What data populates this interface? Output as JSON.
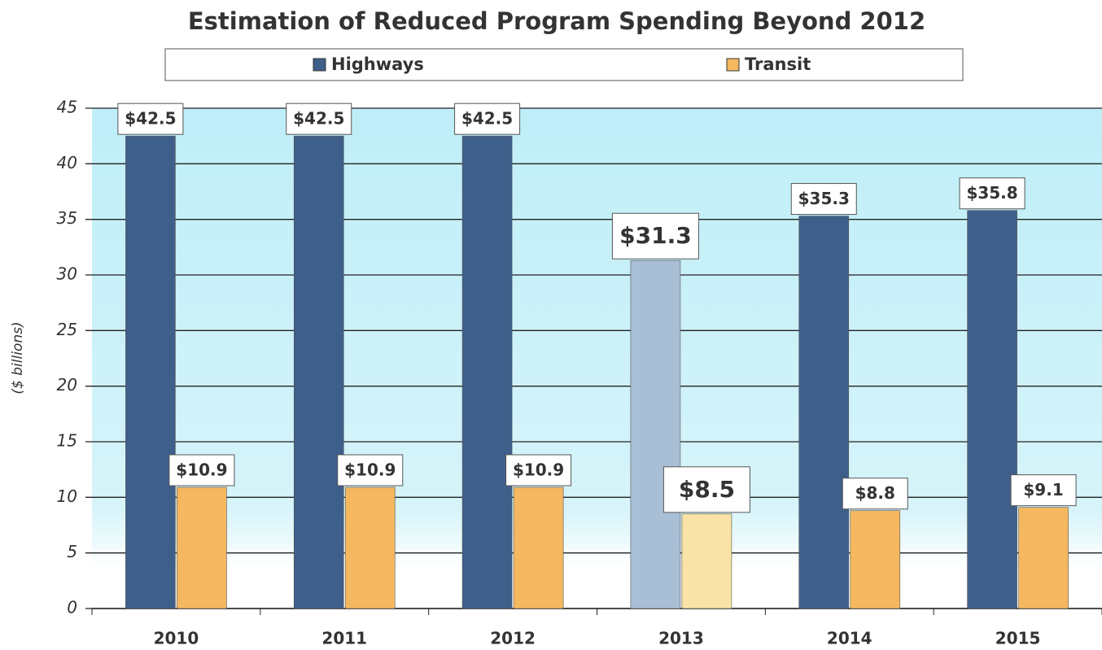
{
  "chart_data": {
    "type": "bar",
    "title": "Estimation of Reduced Program Spending Beyond 2012",
    "y_label": "($ billions)",
    "categories": [
      "2010",
      "2011",
      "2012",
      "2013",
      "2014",
      "2015"
    ],
    "series": [
      {
        "name": "Highways",
        "color": "#3e5f8a",
        "colors": [
          "#3e5f8a",
          "#3e5f8a",
          "#3e5f8a",
          "#a9bfd6",
          "#3e5f8a",
          "#3e5f8a"
        ],
        "values": [
          42.5,
          42.5,
          42.5,
          31.3,
          35.3,
          35.8
        ],
        "value_labels": [
          "$42.5",
          "$42.5",
          "$42.5",
          "$31.3",
          "$35.3",
          "$35.8"
        ]
      },
      {
        "name": "Transit",
        "color": "#f5b860",
        "colors": [
          "#f5b860",
          "#f5b860",
          "#f5b860",
          "#f9e3a6",
          "#f5b860",
          "#f5b860"
        ],
        "values": [
          10.9,
          10.9,
          10.9,
          8.5,
          8.8,
          9.1
        ],
        "value_labels": [
          "$10.9",
          "$10.9",
          "$10.9",
          "$8.5",
          "$8.8",
          "$9.1"
        ]
      }
    ],
    "ylim": [
      0,
      45
    ],
    "yticks": [
      0,
      5,
      10,
      15,
      20,
      25,
      30,
      35,
      40,
      45
    ],
    "grid": true,
    "legend": "top"
  }
}
